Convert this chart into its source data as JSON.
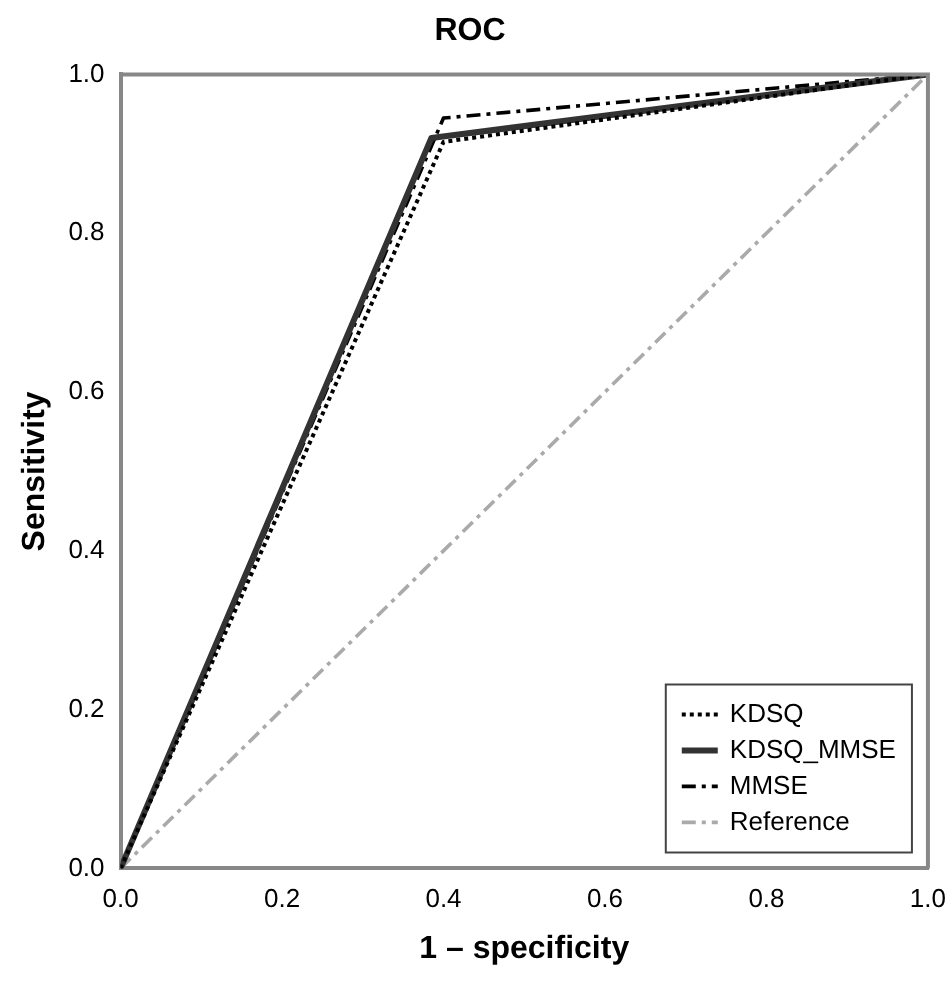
{
  "chart_data": {
    "type": "line",
    "title": "ROC",
    "xlabel": "1 – specificity",
    "ylabel": "Sensitivity",
    "xlim": [
      0,
      1
    ],
    "ylim": [
      0,
      1
    ],
    "xticks": [
      {
        "value": 0,
        "label": "0.0"
      },
      0.2,
      0.4,
      0.6,
      0.8,
      {
        "value": 1,
        "label": "1.0"
      }
    ],
    "yticks": [
      {
        "value": 0,
        "label": "0.0"
      },
      0.2,
      0.4,
      0.6,
      0.8,
      {
        "value": 1,
        "label": "1.0"
      }
    ],
    "grid": false,
    "legend": "bottom right",
    "marker": "none",
    "series": [
      {
        "name": "KDSQ",
        "color": "#000000",
        "line_style": "dotted",
        "x": [
          0,
          0.4,
          1
        ],
        "values": [
          0,
          0.915,
          1
        ]
      },
      {
        "name": "KDSQ_MMSE",
        "color": "#333333",
        "line_style": "solid",
        "x": [
          0,
          0.385,
          1
        ],
        "values": [
          0,
          0.92,
          1
        ]
      },
      {
        "name": "MMSE",
        "color": "#000000",
        "line_style": "dashed",
        "x": [
          0,
          0.4,
          1
        ],
        "values": [
          0,
          0.945,
          1
        ]
      },
      {
        "name": "Reference",
        "color": "#aaaaaa",
        "line_style": "dashed",
        "x": [
          0,
          1
        ],
        "values": [
          0,
          1
        ]
      }
    ]
  }
}
